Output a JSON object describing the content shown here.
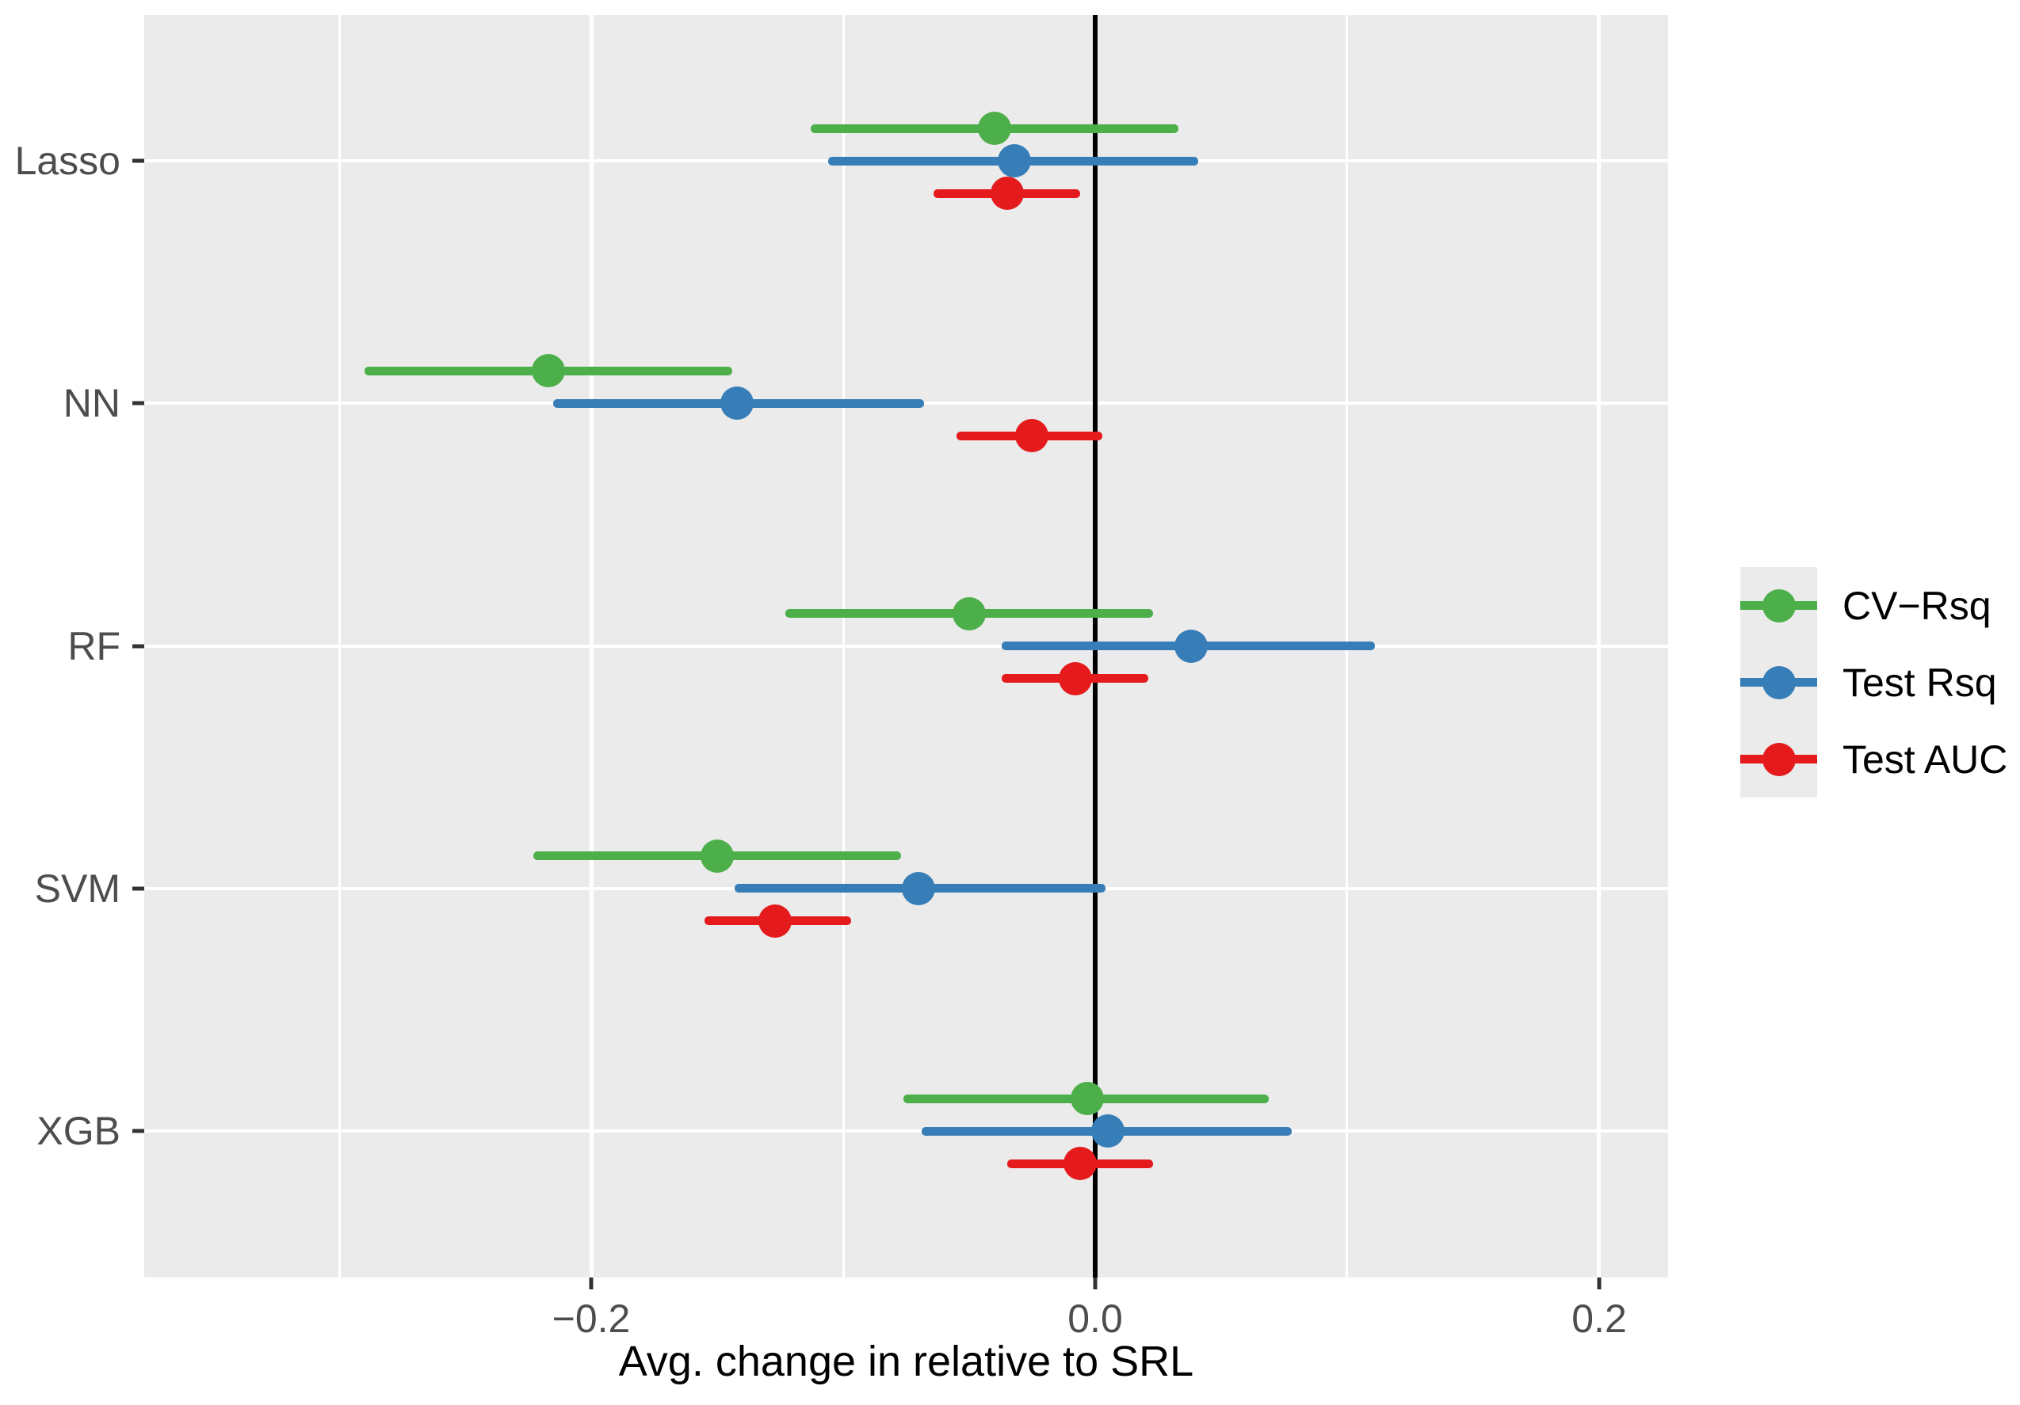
{
  "chart_data": {
    "type": "scatter",
    "subtype": "dot-and-whisker forest plot, horizontal error bars, dodged by series",
    "title": "",
    "xlabel": "Avg. change in relative to SRL",
    "ylabel": "",
    "categories": [
      "Lasso",
      "NN",
      "RF",
      "SVM",
      "XGB"
    ],
    "xlim": [
      -0.3774,
      0.2274
    ],
    "x_major_ticks": [
      -0.2,
      0.0,
      0.2
    ],
    "x_tick_labels": [
      "−0.2",
      "0.0",
      "0.2"
    ],
    "x_minor_gridlines": [
      -0.3,
      -0.1,
      0.1
    ],
    "zero_reference_line": 0.0,
    "grid": "on",
    "legend_position": "right",
    "panel_background": "#ebebeb",
    "gridline_color": "#ffffff",
    "zero_line_color": "#000000",
    "axis_text_color": "#4d4d4d",
    "series": [
      {
        "name": "CV-Rsq",
        "display_name": "CV−Rsq",
        "color": "#4daf4a",
        "values": [
          {
            "category": "Lasso",
            "x": -0.04,
            "xmin": -0.113,
            "xmax": 0.033
          },
          {
            "category": "NN",
            "x": -0.217,
            "xmin": -0.29,
            "xmax": -0.144
          },
          {
            "category": "RF",
            "x": -0.05,
            "xmin": -0.123,
            "xmax": 0.023
          },
          {
            "category": "SVM",
            "x": -0.15,
            "xmin": -0.223,
            "xmax": -0.077
          },
          {
            "category": "XGB",
            "x": -0.003,
            "xmin": -0.076,
            "xmax": 0.069
          }
        ]
      },
      {
        "name": "Test Rsq",
        "display_name": "Test Rsq",
        "color": "#377eb8",
        "values": [
          {
            "category": "Lasso",
            "x": -0.032,
            "xmin": -0.106,
            "xmax": 0.041
          },
          {
            "category": "NN",
            "x": -0.142,
            "xmin": -0.215,
            "xmax": -0.068
          },
          {
            "category": "RF",
            "x": 0.038,
            "xmin": -0.037,
            "xmax": 0.111
          },
          {
            "category": "SVM",
            "x": -0.07,
            "xmin": -0.143,
            "xmax": 0.004
          },
          {
            "category": "XGB",
            "x": 0.005,
            "xmin": -0.069,
            "xmax": 0.078
          }
        ]
      },
      {
        "name": "Test AUC",
        "display_name": "Test AUC",
        "color": "#e41a1c",
        "values": [
          {
            "category": "Lasso",
            "x": -0.035,
            "xmin": -0.064,
            "xmax": -0.006
          },
          {
            "category": "NN",
            "x": -0.025,
            "xmin": -0.055,
            "xmax": 0.003
          },
          {
            "category": "RF",
            "x": -0.008,
            "xmin": -0.037,
            "xmax": 0.021
          },
          {
            "category": "SVM",
            "x": -0.127,
            "xmin": -0.155,
            "xmax": -0.097
          },
          {
            "category": "XGB",
            "x": -0.006,
            "xmin": -0.035,
            "xmax": 0.023
          }
        ]
      }
    ]
  }
}
